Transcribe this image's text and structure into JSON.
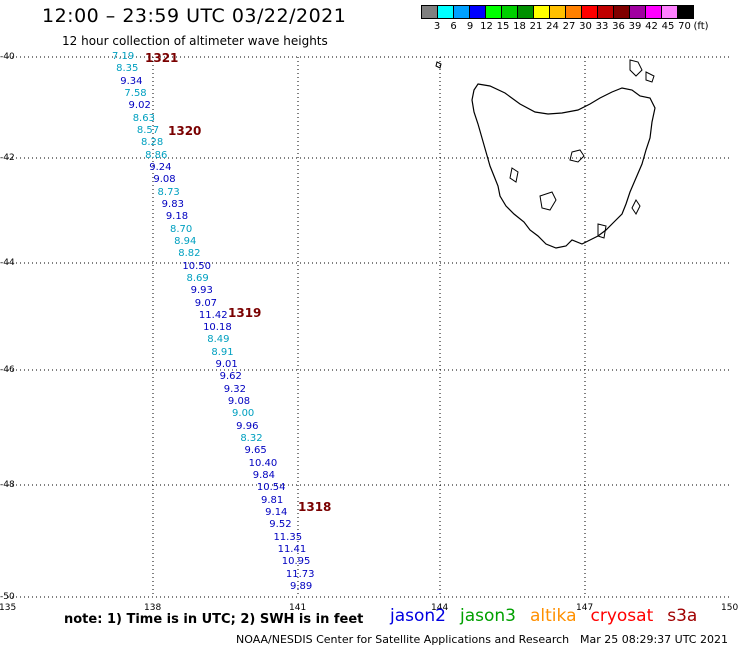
{
  "header": {
    "title": "12:00 – 23:59 UTC 03/22/2021",
    "subtitle": "12 hour collection of altimeter wave heights"
  },
  "legend": {
    "swatch_colors": [
      "#7f7f7f",
      "#00ffff",
      "#00a0ff",
      "#0000ff",
      "#00ff00",
      "#00d000",
      "#009000",
      "#ffff00",
      "#ffc000",
      "#ff8000",
      "#ff0000",
      "#c00000",
      "#800000",
      "#a000a0",
      "#ff00ff",
      "#ff80ff",
      "#000000"
    ],
    "labels": [
      "3",
      "6",
      "9",
      "12",
      "15",
      "18",
      "21",
      "24",
      "27",
      "30",
      "33",
      "36",
      "39",
      "42",
      "45",
      "70",
      "(ft)"
    ]
  },
  "axes": {
    "lat_labels": [
      "-40",
      "-42",
      "-44",
      "-46",
      "-48",
      "-50"
    ],
    "lon_labels": [
      "135",
      "138",
      "141",
      "144",
      "147",
      "150"
    ]
  },
  "passes": [
    "1321",
    "1320",
    "1319",
    "1318"
  ],
  "points": [
    {
      "v": "7.19",
      "c": "#00a0c0"
    },
    {
      "v": "8.35",
      "c": "#00a0c0"
    },
    {
      "v": "9.34",
      "c": "#0000c0"
    },
    {
      "v": "7.58",
      "c": "#00a0c0"
    },
    {
      "v": "9.02",
      "c": "#0000c0"
    },
    {
      "v": "8.63",
      "c": "#00a0c0"
    },
    {
      "v": "8.57",
      "c": "#00a0c0"
    },
    {
      "v": "8.28",
      "c": "#00a0c0"
    },
    {
      "v": "8.86",
      "c": "#00a0c0"
    },
    {
      "v": "9.24",
      "c": "#0000c0"
    },
    {
      "v": "9.08",
      "c": "#0000c0"
    },
    {
      "v": "8.73",
      "c": "#00a0c0"
    },
    {
      "v": "9.83",
      "c": "#0000c0"
    },
    {
      "v": "9.18",
      "c": "#0000c0"
    },
    {
      "v": "8.70",
      "c": "#00a0c0"
    },
    {
      "v": "8.94",
      "c": "#00a0c0"
    },
    {
      "v": "8.82",
      "c": "#00a0c0"
    },
    {
      "v": "10.50",
      "c": "#0000c0"
    },
    {
      "v": "8.69",
      "c": "#00a0c0"
    },
    {
      "v": "9.93",
      "c": "#0000c0"
    },
    {
      "v": "9.07",
      "c": "#0000c0"
    },
    {
      "v": "11.42",
      "c": "#0000c0"
    },
    {
      "v": "10.18",
      "c": "#0000c0"
    },
    {
      "v": "8.49",
      "c": "#00a0c0"
    },
    {
      "v": "8.91",
      "c": "#00a0c0"
    },
    {
      "v": "9.01",
      "c": "#0000c0"
    },
    {
      "v": "9.62",
      "c": "#0000c0"
    },
    {
      "v": "9.32",
      "c": "#0000c0"
    },
    {
      "v": "9.08",
      "c": "#0000c0"
    },
    {
      "v": "9.00",
      "c": "#00a0c0"
    },
    {
      "v": "9.96",
      "c": "#0000c0"
    },
    {
      "v": "8.32",
      "c": "#00a0c0"
    },
    {
      "v": "9.65",
      "c": "#0000c0"
    },
    {
      "v": "10.40",
      "c": "#0000c0"
    },
    {
      "v": "9.84",
      "c": "#0000c0"
    },
    {
      "v": "10.54",
      "c": "#0000c0"
    },
    {
      "v": "9.81",
      "c": "#0000c0"
    },
    {
      "v": "9.14",
      "c": "#0000c0"
    },
    {
      "v": "9.52",
      "c": "#0000c0"
    },
    {
      "v": "11.35",
      "c": "#0000c0"
    },
    {
      "v": "11.41",
      "c": "#0000c0"
    },
    {
      "v": "10.95",
      "c": "#0000c0"
    },
    {
      "v": "11.73",
      "c": "#0000c0"
    },
    {
      "v": "9.89",
      "c": "#0000c0"
    }
  ],
  "footer": {
    "note": "note:  1) Time is in UTC;  2) SWH is in feet",
    "satellites": [
      {
        "name": "jason2",
        "color": "#0000e0"
      },
      {
        "name": "jason3",
        "color": "#00a000"
      },
      {
        "name": "altika",
        "color": "#ff9000"
      },
      {
        "name": "cryosat",
        "color": "#ff0000"
      },
      {
        "name": "s3a",
        "color": "#a00000"
      }
    ],
    "credit": "NOAA/NESDIS Center for Satellite Applications and Research",
    "timestamp": "Mar 25 08:29:37 UTC 2021"
  }
}
